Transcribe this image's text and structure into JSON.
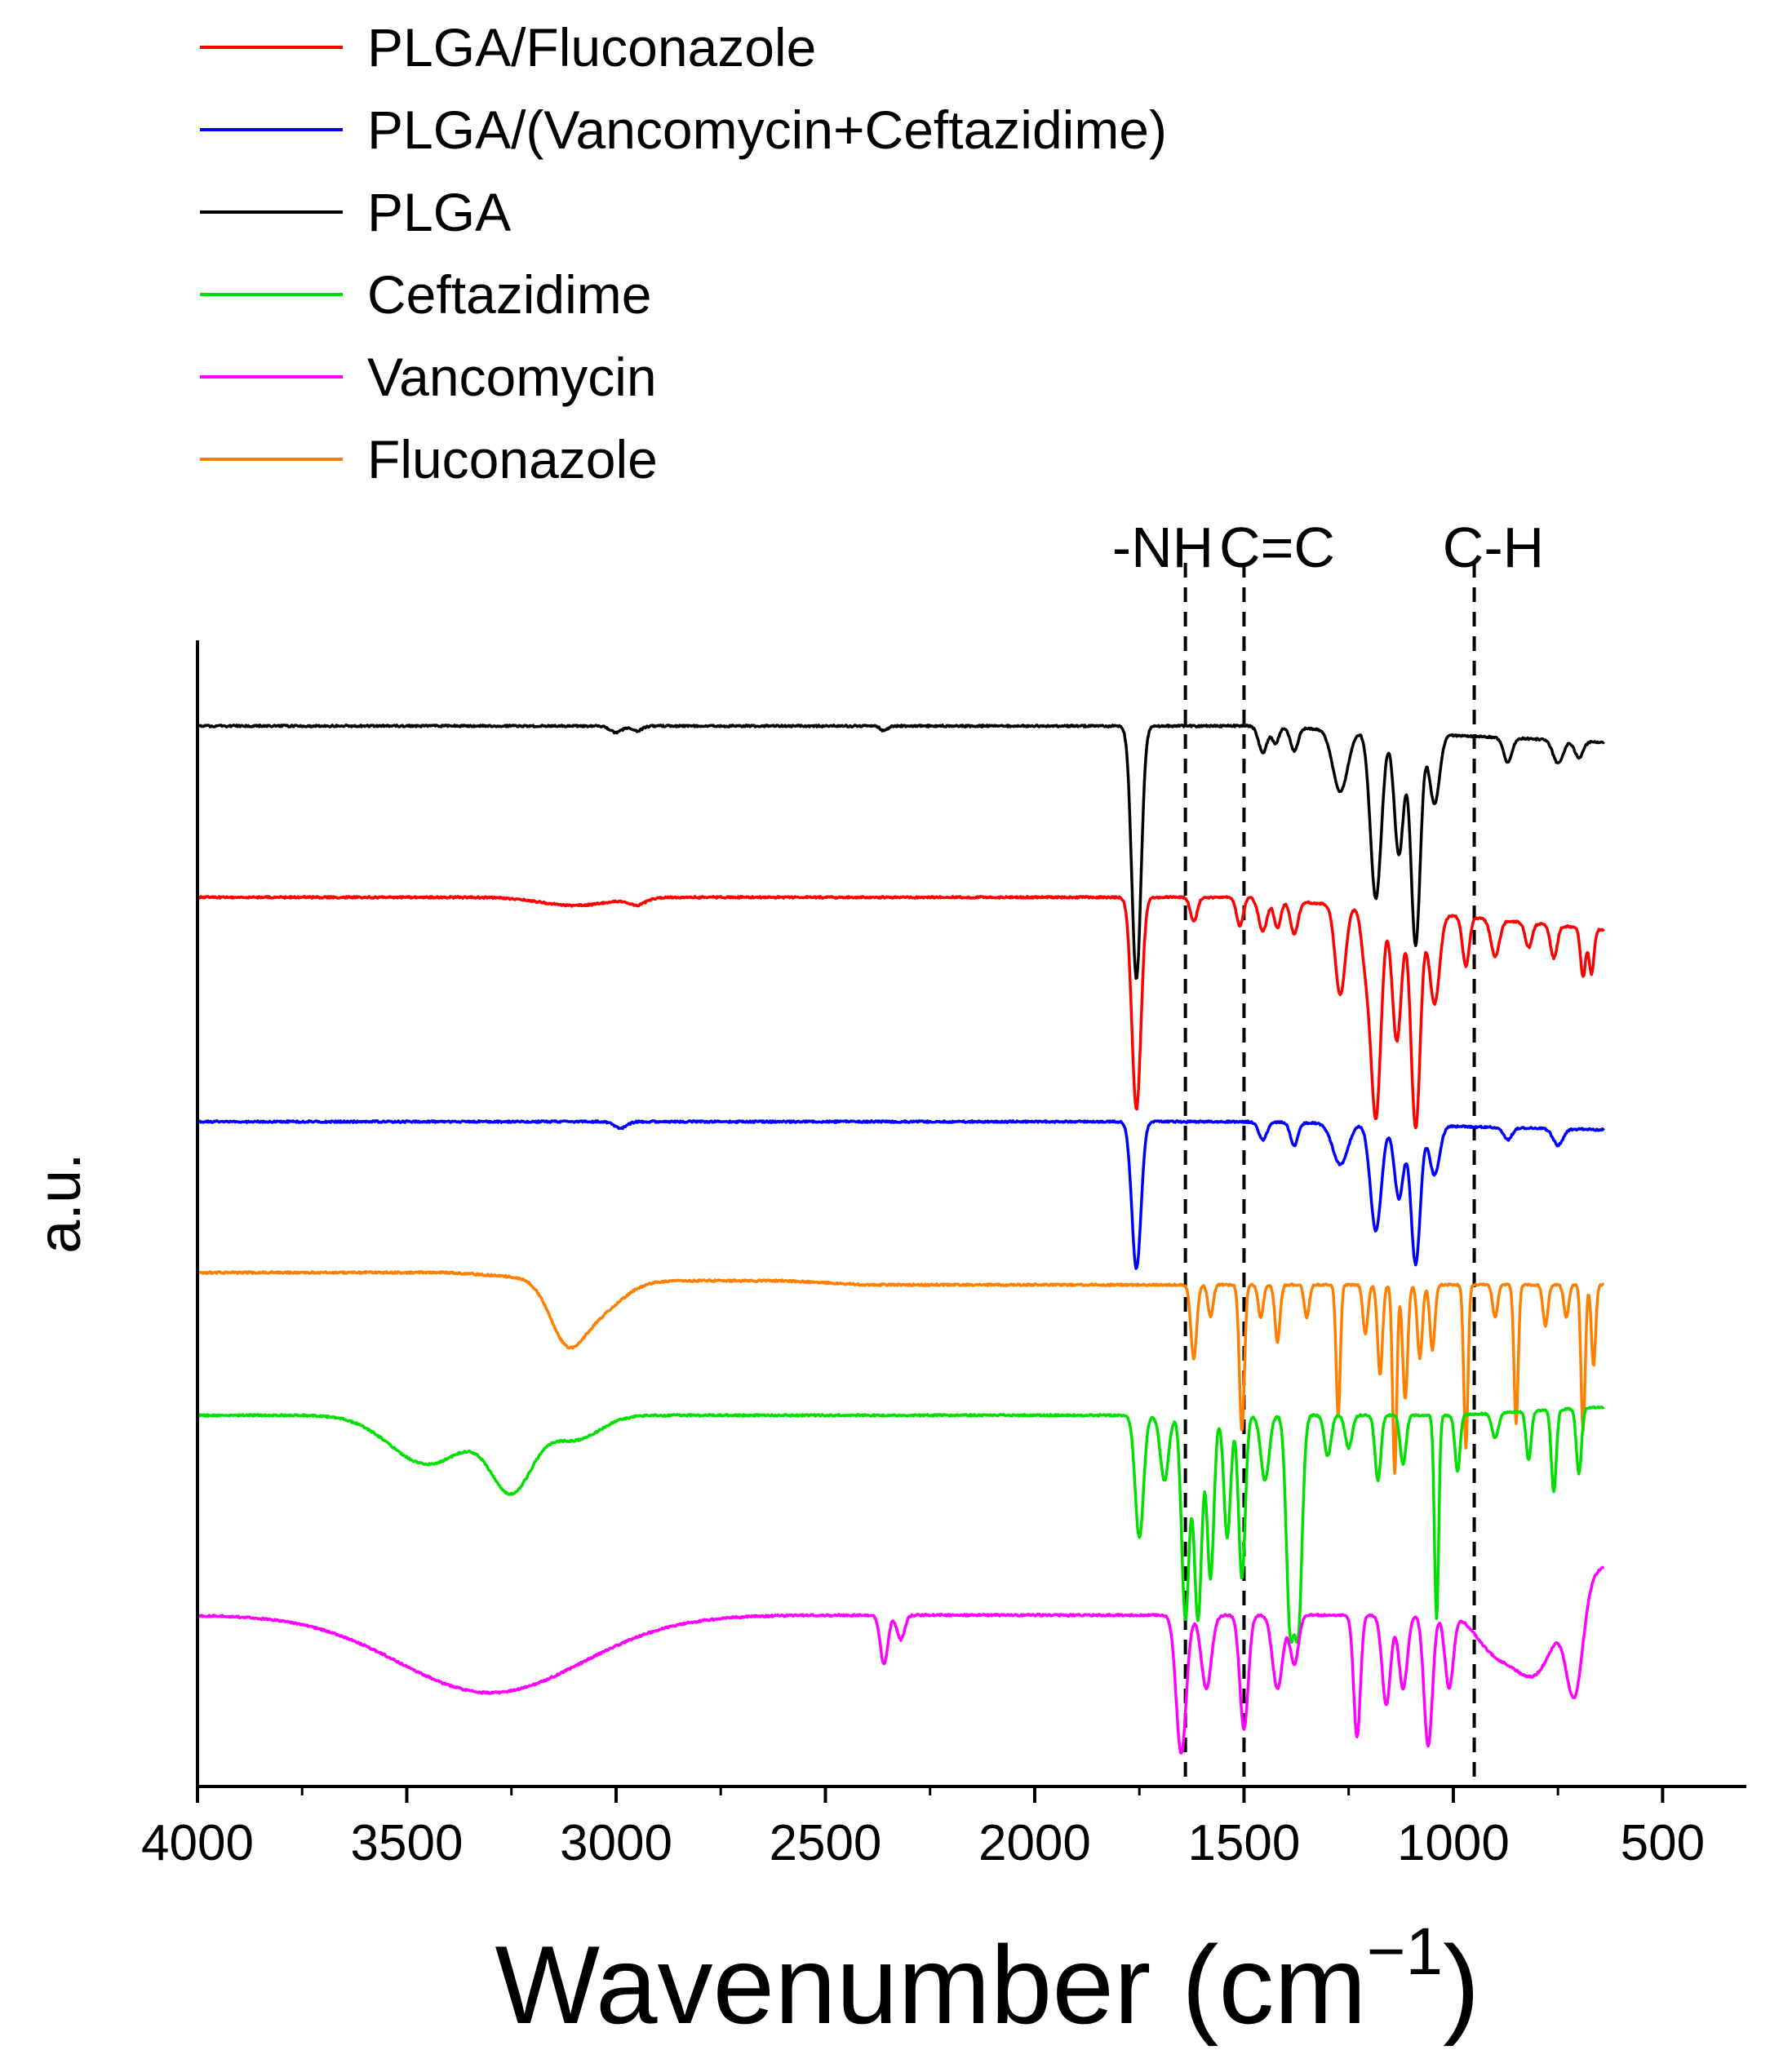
{
  "chart_data": {
    "type": "line",
    "title": "",
    "xlabel": "Wavenumber (cm",
    "xlabel_superscript": "−1",
    "xlabel_suffix": ")",
    "ylabel": "a.u.",
    "xlim": [
      4000,
      300
    ],
    "x_ticks": [
      "4000",
      "3500",
      "3000",
      "2500",
      "2000",
      "1500",
      "1000",
      "500"
    ],
    "x_tick_values": [
      4000,
      3500,
      3000,
      2500,
      2000,
      1500,
      1000,
      500
    ],
    "grid": false,
    "legend_position": "top-left",
    "legend": [
      {
        "label": "PLGA/Fluconazole",
        "color": "#ff0000"
      },
      {
        "label": "PLGA/(Vancomycin+Ceftazidime)",
        "color": "#0000ff"
      },
      {
        "label": "PLGA",
        "color": "#000000"
      },
      {
        "label": "Ceftazidime",
        "color": "#00e000"
      },
      {
        "label": "Vancomycin",
        "color": "#ff00ff"
      },
      {
        "label": "Fluconazole",
        "color": "#ff8000"
      }
    ],
    "annotations": [
      {
        "label": "-NH",
        "x": 1640
      },
      {
        "label": "C=C",
        "x": 1500
      },
      {
        "label": "C-H",
        "x": 950
      }
    ],
    "series": [
      {
        "name": "PLGA",
        "color": "#000000",
        "offset": 0,
        "scale": 1.0,
        "peaks": [
          [
            3000,
            8,
            14
          ],
          [
            2950,
            6,
            12
          ],
          [
            2360,
            6,
            8
          ],
          [
            1757,
            310,
            11
          ],
          [
            1455,
            32,
            10
          ],
          [
            1425,
            20,
            8
          ],
          [
            1380,
            28,
            9
          ],
          [
            1270,
            75,
            18
          ],
          [
            1185,
            205,
            13
          ],
          [
            1130,
            150,
            11
          ],
          [
            1090,
            260,
            11
          ],
          [
            1045,
            85,
            12
          ],
          [
            870,
            30,
            10
          ],
          [
            750,
            28,
            12
          ],
          [
            700,
            20,
            10
          ]
        ],
        "slope": [
          [
            1480,
            640,
            20
          ]
        ]
      },
      {
        "name": "PLGA/Fluconazole",
        "color": "#ff0000",
        "offset": 210,
        "scale": 1.0,
        "peaks": [
          [
            3100,
            10,
            80
          ],
          [
            2950,
            8,
            20
          ],
          [
            1757,
            260,
            11
          ],
          [
            1620,
            30,
            8
          ],
          [
            1510,
            35,
            8
          ],
          [
            1455,
            40,
            10
          ],
          [
            1420,
            35,
            8
          ],
          [
            1380,
            40,
            9
          ],
          [
            1270,
            110,
            12
          ],
          [
            1210,
            60,
            10
          ],
          [
            1185,
            255,
            12
          ],
          [
            1135,
            160,
            11
          ],
          [
            1090,
            265,
            11
          ],
          [
            1045,
            110,
            12
          ],
          [
            970,
            60,
            8
          ],
          [
            900,
            45,
            10
          ],
          [
            820,
            30,
            8
          ],
          [
            760,
            40,
            8
          ],
          [
            690,
            60,
            6
          ],
          [
            670,
            55,
            6
          ]
        ],
        "slope": [
          [
            1480,
            640,
            40
          ]
        ]
      },
      {
        "name": "PLGA/(Vancomycin+Ceftazidime)",
        "color": "#0000ff",
        "offset": 485,
        "scale": 1.0,
        "peaks": [
          [
            2990,
            8,
            15
          ],
          [
            1757,
            180,
            11
          ],
          [
            1455,
            22,
            10
          ],
          [
            1380,
            28,
            9
          ],
          [
            1270,
            50,
            18
          ],
          [
            1185,
            130,
            13
          ],
          [
            1130,
            90,
            11
          ],
          [
            1090,
            170,
            11
          ],
          [
            1045,
            60,
            12
          ],
          [
            870,
            15,
            10
          ],
          [
            750,
            20,
            12
          ]
        ],
        "slope": [
          [
            1480,
            640,
            10
          ]
        ]
      },
      {
        "name": "Fluconazole",
        "color": "#ff8000",
        "offset": 670,
        "scale": 1.0,
        "peaks": [
          [
            3120,
            60,
            40
          ],
          [
            3050,
            40,
            60
          ],
          [
            1620,
            90,
            7
          ],
          [
            1580,
            40,
            6
          ],
          [
            1505,
            180,
            6
          ],
          [
            1460,
            40,
            6
          ],
          [
            1420,
            70,
            6
          ],
          [
            1350,
            40,
            6
          ],
          [
            1275,
            160,
            5
          ],
          [
            1210,
            60,
            6
          ],
          [
            1175,
            110,
            6
          ],
          [
            1140,
            230,
            5
          ],
          [
            1115,
            140,
            6
          ],
          [
            1080,
            90,
            6
          ],
          [
            1050,
            80,
            6
          ],
          [
            970,
            200,
            5
          ],
          [
            900,
            40,
            6
          ],
          [
            850,
            170,
            5
          ],
          [
            780,
            50,
            6
          ],
          [
            730,
            40,
            6
          ],
          [
            690,
            180,
            5
          ],
          [
            665,
            100,
            5
          ]
        ],
        "slope": [
          [
            3400,
            3100,
            10
          ],
          [
            2600,
            2400,
            5
          ]
        ]
      },
      {
        "name": "Ceftazidime",
        "color": "#00e000",
        "offset": 845,
        "scale": 1.0,
        "peaks": [
          [
            3450,
            60,
            90
          ],
          [
            3250,
            90,
            50
          ],
          [
            3100,
            30,
            60
          ],
          [
            1750,
            150,
            10
          ],
          [
            1690,
            80,
            10
          ],
          [
            1640,
            250,
            9
          ],
          [
            1610,
            250,
            9
          ],
          [
            1580,
            200,
            8
          ],
          [
            1540,
            150,
            8
          ],
          [
            1505,
            200,
            8
          ],
          [
            1450,
            80,
            10
          ],
          [
            1390,
            250,
            9
          ],
          [
            1370,
            250,
            9
          ],
          [
            1300,
            50,
            8
          ],
          [
            1250,
            40,
            8
          ],
          [
            1180,
            80,
            7
          ],
          [
            1120,
            60,
            7
          ],
          [
            1040,
            250,
            5
          ],
          [
            990,
            70,
            6
          ],
          [
            900,
            30,
            8
          ],
          [
            820,
            60,
            6
          ],
          [
            760,
            100,
            6
          ],
          [
            700,
            80,
            6
          ]
        ],
        "slope": [
          [
            1000,
            640,
            -10
          ]
        ]
      },
      {
        "name": "Vancomycin",
        "color": "#ff00ff",
        "offset": 1090,
        "scale": 1.0,
        "peaks": [
          [
            3300,
            95,
            220
          ],
          [
            2360,
            60,
            9
          ],
          [
            2320,
            30,
            9
          ],
          [
            1650,
            170,
            12
          ],
          [
            1590,
            90,
            12
          ],
          [
            1500,
            140,
            10
          ],
          [
            1420,
            90,
            12
          ],
          [
            1380,
            60,
            10
          ],
          [
            1230,
            150,
            8
          ],
          [
            1160,
            110,
            10
          ],
          [
            1120,
            90,
            10
          ],
          [
            1060,
            160,
            10
          ],
          [
            1010,
            90,
            10
          ],
          [
            900,
            60,
            50
          ],
          [
            800,
            100,
            50
          ],
          [
            710,
            130,
            20
          ]
        ],
        "slope": [
          [
            1050,
            640,
            -60
          ]
        ]
      }
    ]
  }
}
